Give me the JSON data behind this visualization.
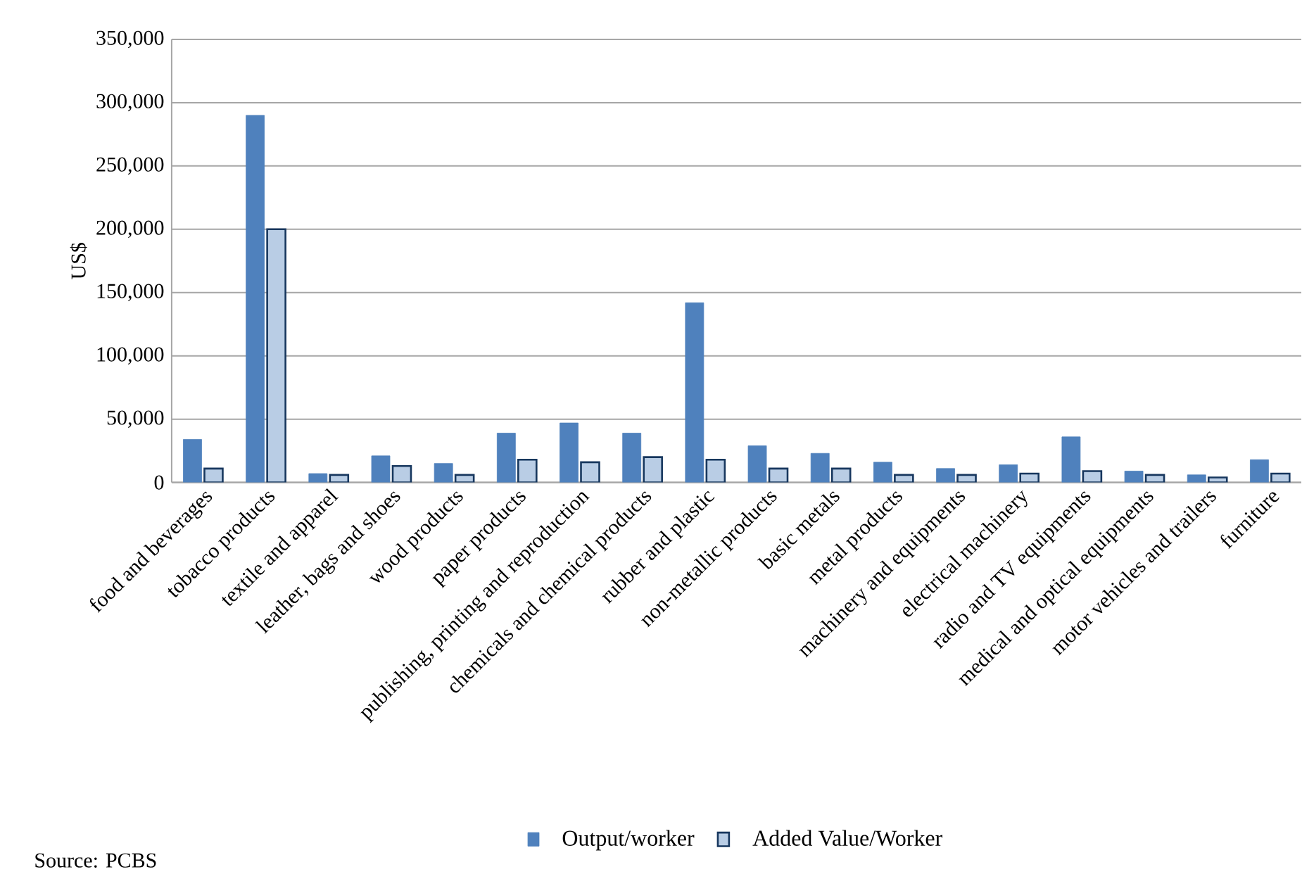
{
  "chart_data": {
    "type": "bar",
    "ylabel": "US$",
    "categories": [
      "food and beverages",
      "tobacco products",
      "textile and apparel",
      "leather, bags and shoes",
      "wood products",
      "paper products",
      "publishing, printing and reproduction",
      "chemicals and chemical products",
      "rubber and plastic",
      "non-metallic products",
      "basic metals",
      "metal products",
      "machinery and equipments",
      "electrical machinery",
      "radio and TV equipments",
      "medical and optical equipments",
      "motor vehicles and trailers",
      "furniture"
    ],
    "series": [
      {
        "name": "Output/worker",
        "color": "#4f81bd",
        "values": [
          34000,
          290000,
          7000,
          21000,
          15000,
          39000,
          47000,
          39000,
          142000,
          29000,
          23000,
          16000,
          11000,
          14000,
          36000,
          9000,
          6000,
          18000
        ]
      },
      {
        "name": "Added Value/Worker",
        "color": "#b9cde5",
        "values": [
          11000,
          200000,
          6000,
          13000,
          6000,
          18000,
          16000,
          20000,
          18000,
          11000,
          11000,
          6000,
          6000,
          7000,
          9000,
          6000,
          4000,
          7000
        ]
      }
    ],
    "ylim": [
      0,
      350000
    ],
    "yticks": [
      {
        "value": 0,
        "label": "0"
      },
      {
        "value": 50000,
        "label": "50,000"
      },
      {
        "value": 100000,
        "label": "100,000"
      },
      {
        "value": 150000,
        "label": "150,000"
      },
      {
        "value": 200000,
        "label": "200,000"
      },
      {
        "value": 250000,
        "label": "250,000"
      },
      {
        "value": 300000,
        "label": "300,000"
      },
      {
        "value": 350000,
        "label": "350,000"
      }
    ],
    "grid": "y",
    "legend": "bottom",
    "annotations": [
      "Source: PCBS"
    ]
  }
}
